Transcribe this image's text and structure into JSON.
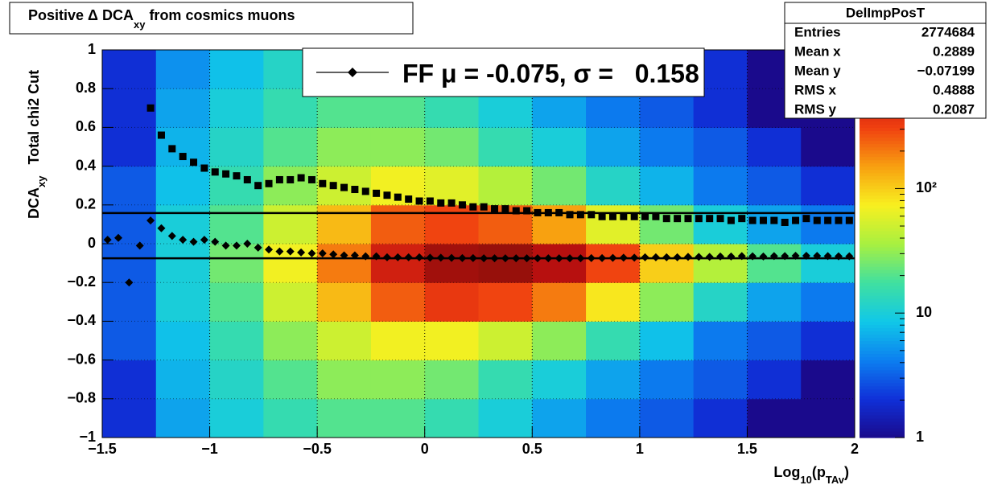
{
  "chart_data": {
    "type": "heatmap",
    "title": {
      "main": "Positive Δ DCA",
      "sub": "xy",
      "rest": " from cosmics muons"
    },
    "x_label": {
      "main": "Log",
      "sub": "10",
      "mid": "(p",
      "sub2": "TAv",
      "end": ")"
    },
    "y_label": {
      "main": "DCA",
      "sub": "xy",
      "rest": "Total chi2 Cut"
    },
    "xlim": [
      -1.5,
      2
    ],
    "ylim": [
      -1,
      1
    ],
    "xticks": [
      {
        "value": -1.5,
        "label": "−1.5"
      },
      {
        "value": -1,
        "label": "−1"
      },
      {
        "value": -0.5,
        "label": "−0.5"
      },
      0,
      0.5,
      1,
      1.5,
      2
    ],
    "yticks": [
      {
        "value": -1,
        "label": "−1"
      },
      {
        "value": -0.8,
        "label": "−0.8"
      },
      {
        "value": -0.6,
        "label": "−0.6"
      },
      {
        "value": -0.4,
        "label": "−0.4"
      },
      {
        "value": -0.2,
        "label": "−0.2"
      },
      0,
      0.2,
      0.4,
      0.6,
      0.8,
      1
    ],
    "grid": true,
    "zlim": [
      1,
      1300
    ],
    "zlog": true,
    "zticks": [
      1,
      10,
      {
        "value": 100,
        "label": "10²"
      }
    ],
    "palette": [
      "#1a0a8c",
      "#1030d8",
      "#0c7ff0",
      "#10c8e8",
      "#40e0a0",
      "#a8f040",
      "#f8f020",
      "#f8a010",
      "#f04010",
      "#c01010",
      "#801008"
    ],
    "x_bins": [
      -1.5,
      -1.25,
      -1,
      -0.75,
      -0.5,
      -0.25,
      0,
      0.25,
      0.5,
      0.75,
      1,
      1.25,
      1.5,
      1.75,
      2
    ],
    "y_bins": [
      -1,
      -0.8,
      -0.6,
      -0.4,
      -0.2,
      0,
      0.2,
      0.4,
      0.6,
      0.8,
      1
    ],
    "z": [
      [
        2,
        6,
        10,
        15,
        20,
        20,
        15,
        10,
        6,
        4,
        3,
        2,
        1,
        1
      ],
      [
        2,
        7,
        12,
        20,
        30,
        30,
        25,
        15,
        10,
        6,
        4,
        3,
        2,
        1
      ],
      [
        3,
        8,
        15,
        30,
        50,
        70,
        70,
        50,
        30,
        15,
        8,
        4,
        3,
        2
      ],
      [
        3,
        10,
        20,
        50,
        120,
        250,
        350,
        300,
        200,
        80,
        30,
        12,
        6,
        4
      ],
      [
        3,
        10,
        25,
        70,
        200,
        500,
        900,
        1000,
        700,
        300,
        100,
        40,
        20,
        10
      ],
      [
        3,
        10,
        20,
        50,
        120,
        250,
        300,
        250,
        150,
        60,
        25,
        10,
        6,
        4
      ],
      [
        3,
        8,
        15,
        30,
        50,
        70,
        60,
        40,
        25,
        12,
        7,
        4,
        3,
        2
      ],
      [
        2,
        7,
        12,
        20,
        30,
        30,
        25,
        15,
        10,
        6,
        4,
        3,
        2,
        1
      ],
      [
        2,
        6,
        10,
        15,
        20,
        20,
        15,
        10,
        6,
        4,
        3,
        2,
        1,
        1
      ],
      [
        2,
        5,
        8,
        12,
        15,
        15,
        12,
        8,
        5,
        4,
        3,
        2,
        1,
        1
      ]
    ],
    "x": [
      -1.475,
      -1.425,
      -1.375,
      -1.325,
      -1.275,
      -1.225,
      -1.175,
      -1.125,
      -1.075,
      -1.025,
      -0.975,
      -0.925,
      -0.875,
      -0.825,
      -0.775,
      -0.725,
      -0.675,
      -0.625,
      -0.575,
      -0.525,
      -0.475,
      -0.425,
      -0.375,
      -0.325,
      -0.275,
      -0.225,
      -0.175,
      -0.125,
      -0.075,
      -0.025,
      0.025,
      0.075,
      0.125,
      0.175,
      0.225,
      0.275,
      0.325,
      0.375,
      0.425,
      0.475,
      0.525,
      0.575,
      0.625,
      0.675,
      0.725,
      0.775,
      0.825,
      0.875,
      0.925,
      0.975,
      1.025,
      1.075,
      1.125,
      1.175,
      1.225,
      1.275,
      1.325,
      1.375,
      1.425,
      1.475,
      1.525,
      1.575,
      1.625,
      1.675,
      1.725,
      1.775,
      1.825,
      1.875,
      1.925,
      1.975
    ],
    "series": [
      {
        "name": "sigma",
        "color": "#000000",
        "marker": "square",
        "values": [
          null,
          null,
          null,
          null,
          0.7,
          0.56,
          0.49,
          0.45,
          0.42,
          0.39,
          0.37,
          0.36,
          0.35,
          0.33,
          0.3,
          0.31,
          0.33,
          0.33,
          0.34,
          0.33,
          0.31,
          0.3,
          0.29,
          0.28,
          0.27,
          0.26,
          0.25,
          0.24,
          0.23,
          0.22,
          0.22,
          0.21,
          0.21,
          0.2,
          0.19,
          0.19,
          0.18,
          0.18,
          0.17,
          0.17,
          0.16,
          0.16,
          0.16,
          0.15,
          0.15,
          0.15,
          0.14,
          0.14,
          0.14,
          0.14,
          0.14,
          0.14,
          0.13,
          0.13,
          0.13,
          0.13,
          0.13,
          0.13,
          0.12,
          0.13,
          0.12,
          0.12,
          0.12,
          0.11,
          0.12,
          0.13,
          0.12,
          0.12,
          0.12,
          0.12
        ]
      },
      {
        "name": "mu",
        "color": "#000000",
        "marker": "diamond",
        "values": [
          0.02,
          0.03,
          -0.2,
          -0.01,
          0.12,
          0.08,
          0.04,
          0.02,
          0.01,
          0.02,
          0.01,
          -0.01,
          -0.01,
          0.0,
          -0.02,
          -0.03,
          -0.04,
          -0.04,
          -0.045,
          -0.05,
          -0.05,
          -0.055,
          -0.06,
          -0.06,
          -0.065,
          -0.065,
          -0.07,
          -0.07,
          -0.07,
          -0.07,
          -0.072,
          -0.072,
          -0.073,
          -0.074,
          -0.074,
          -0.075,
          -0.075,
          -0.075,
          -0.075,
          -0.075,
          -0.075,
          -0.075,
          -0.075,
          -0.075,
          -0.075,
          -0.074,
          -0.074,
          -0.073,
          -0.072,
          -0.072,
          -0.07,
          -0.07,
          -0.07,
          -0.07,
          -0.068,
          -0.068,
          -0.068,
          -0.066,
          -0.066,
          -0.064,
          -0.065,
          -0.066,
          -0.064,
          -0.064,
          -0.062,
          -0.062,
          -0.063,
          -0.064,
          -0.065,
          -0.065
        ]
      }
    ],
    "fit": {
      "mu": -0.075,
      "sigma": 0.158
    },
    "legend": {
      "label": "FF μ = -0.075, σ =   0.158"
    },
    "stats": {
      "title": "DelImpPosT",
      "rows": [
        [
          "Entries",
          "2774684"
        ],
        [
          "Mean x",
          "0.2889"
        ],
        [
          "Mean y",
          "−0.07199"
        ],
        [
          "RMS x",
          "0.4888"
        ],
        [
          "RMS y",
          "0.2087"
        ]
      ]
    }
  }
}
